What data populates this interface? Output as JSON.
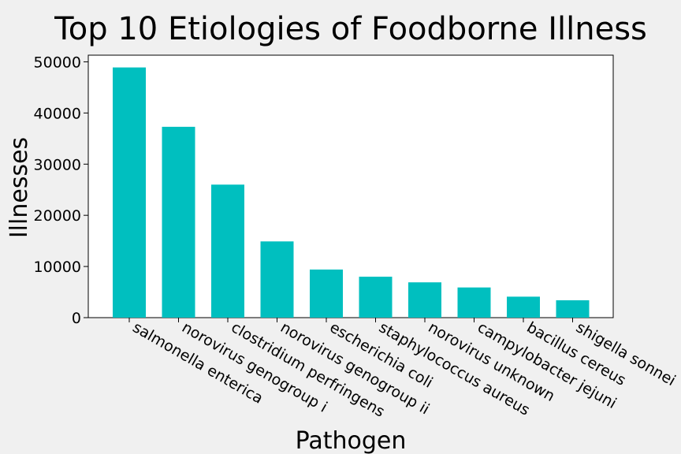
{
  "chart_data": {
    "type": "bar",
    "title": "Top 10 Etiologies of Foodborne Illness",
    "xlabel": "Pathogen",
    "ylabel": "Illnesses",
    "categories": [
      "salmonella enterica",
      "norovirus genogroup i",
      "clostridium perfringens",
      "norovirus genogroup ii",
      "escherichia coli",
      "staphylococcus aureus",
      "norovirus unknown",
      "campylobacter jejuni",
      "bacillus cereus",
      "shigella sonnei"
    ],
    "values": [
      48900,
      37300,
      26000,
      14900,
      9400,
      8000,
      6900,
      5900,
      4100,
      3400
    ],
    "ylim": [
      0,
      51300
    ],
    "yticks": [
      0,
      10000,
      20000,
      30000,
      40000,
      50000
    ],
    "bar_color": "#00bfbf",
    "grid": false,
    "legend": "none"
  }
}
